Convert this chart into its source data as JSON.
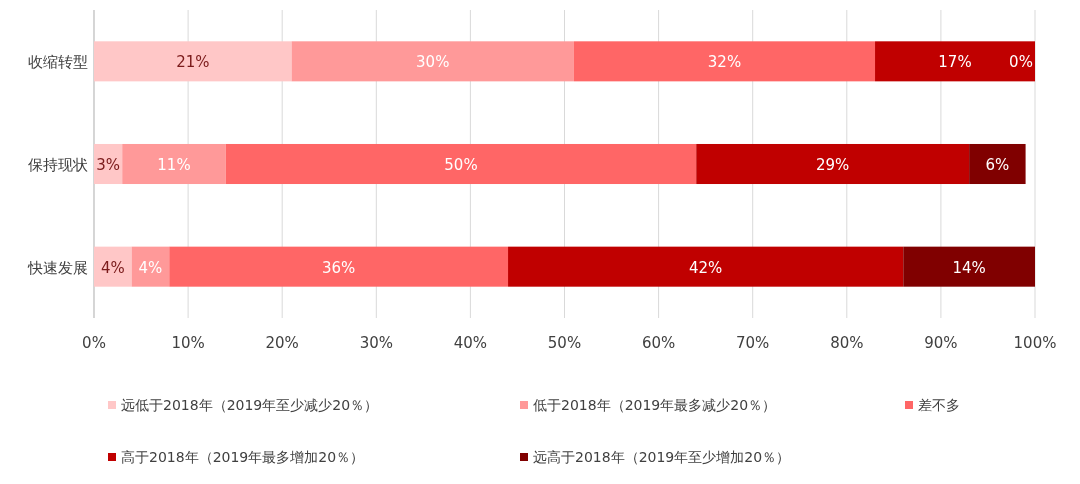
{
  "chart_data": {
    "type": "bar",
    "orientation": "horizontal",
    "stacked": true,
    "categories": [
      "收缩转型",
      "保持现状",
      "快速发展"
    ],
    "series": [
      {
        "name": "远低于2018年（2019年至少减少20％）",
        "color": "#ffc7c7",
        "values": [
          21,
          3,
          4
        ],
        "value_labels": [
          "21%",
          "3%",
          "4%"
        ]
      },
      {
        "name": "低于2018年（2019年最多减少20％）",
        "color": "#ff9999",
        "values": [
          30,
          11,
          4
        ],
        "value_labels": [
          "30%",
          "11%",
          "4%"
        ]
      },
      {
        "name": "差不多",
        "color": "#ff6666",
        "values": [
          32,
          50,
          36
        ],
        "value_labels": [
          "32%",
          "50%",
          "36%"
        ]
      },
      {
        "name": "高于2018年（2019年最多增加20％）",
        "color": "#c00000",
        "values": [
          17,
          29,
          42
        ],
        "value_labels": [
          "17%",
          "29%",
          "42%"
        ]
      },
      {
        "name": "远高于2018年（2019年至少增加20％）",
        "color": "#800000",
        "values": [
          0,
          6,
          14
        ],
        "value_labels": [
          "0%",
          "6%",
          "14%"
        ]
      }
    ],
    "xlim": [
      0,
      100
    ],
    "xticks": [
      {
        "value": 0,
        "label": "0%"
      },
      {
        "value": 10,
        "label": "10%"
      },
      {
        "value": 20,
        "label": "20%"
      },
      {
        "value": 30,
        "label": "30%"
      },
      {
        "value": 40,
        "label": "40%"
      },
      {
        "value": 50,
        "label": "50%"
      },
      {
        "value": 60,
        "label": "60%"
      },
      {
        "value": 70,
        "label": "70%"
      },
      {
        "value": 80,
        "label": "80%"
      },
      {
        "value": 90,
        "label": "90%"
      },
      {
        "value": 100,
        "label": "100%"
      }
    ],
    "grid": "x",
    "legend": "bottom"
  }
}
